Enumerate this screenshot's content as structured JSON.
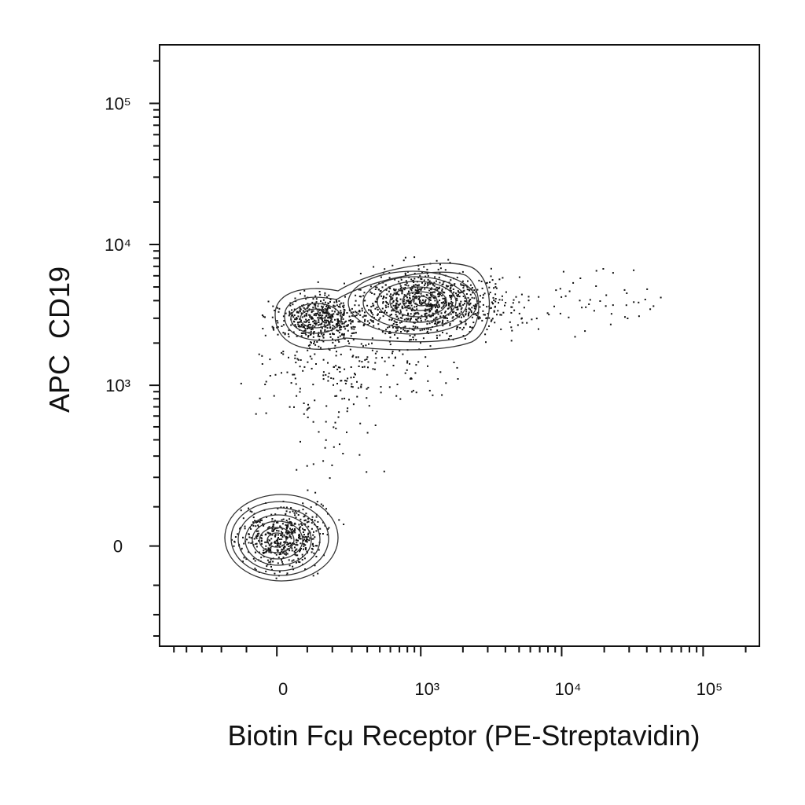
{
  "chart_data": {
    "type": "contour",
    "x_label": "Biotin Fcμ Receptor (PE-Streptavidin)",
    "y_label": "APC  CD19",
    "scale": "biexponential",
    "xlim": [
      -640,
      250000
    ],
    "ylim": [
      -360,
      260000
    ],
    "xticks": [
      0,
      {
        "value": 1000,
        "label": "10³"
      },
      {
        "value": 10000,
        "label": "10⁴"
      },
      {
        "value": 100000,
        "label": "10⁵"
      }
    ],
    "yticks": [
      0,
      {
        "value": 1000,
        "label": "10³"
      },
      {
        "value": 10000,
        "label": "10⁴"
      },
      {
        "value": 100000,
        "label": "10⁵"
      }
    ],
    "xminorticks": [
      -500,
      -400,
      -300,
      -200,
      -100,
      100,
      200,
      300,
      400,
      500,
      600,
      700,
      800,
      900,
      2000,
      3000,
      4000,
      5000,
      6000,
      7000,
      8000,
      9000,
      20000,
      30000,
      40000,
      50000,
      60000,
      70000,
      80000,
      90000,
      200000
    ],
    "yminorticks": [
      -300,
      -200,
      -100,
      100,
      200,
      300,
      400,
      500,
      600,
      700,
      800,
      900,
      2000,
      3000,
      4000,
      5000,
      6000,
      7000,
      8000,
      9000,
      20000,
      30000,
      40000,
      50000,
      60000,
      70000,
      80000,
      90000,
      200000
    ]
  }
}
